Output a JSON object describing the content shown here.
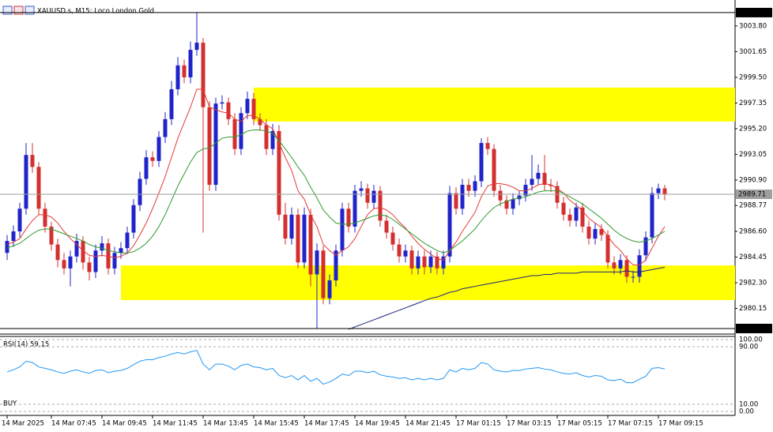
{
  "chart_data": [
    {
      "type": "candlestick",
      "title": "XAUUSD.s, M15: Loco London Gold",
      "categories": [
        "14 Mar 2025",
        null,
        null,
        null,
        null,
        null,
        null,
        "14 Mar 07:45",
        null,
        null,
        null,
        null,
        null,
        null,
        null,
        "14 Mar 09:45",
        null,
        null,
        null,
        null,
        null,
        null,
        null,
        "14 Mar 11:45",
        null,
        null,
        null,
        null,
        null,
        null,
        null,
        "14 Mar 13:45",
        null,
        null,
        null,
        null,
        null,
        null,
        null,
        "14 Mar 15:45",
        null,
        null,
        null,
        null,
        null,
        null,
        null,
        "14 Mar 17:45",
        null,
        null,
        null,
        null,
        null,
        null,
        null,
        "14 Mar 19:45",
        null,
        null,
        null,
        null,
        null,
        null,
        null,
        "14 Mar 21:45",
        null,
        null,
        null,
        null,
        null,
        null,
        null,
        "17 Mar 01:15",
        null,
        null,
        null,
        null,
        null,
        null,
        null,
        "17 Mar 03:15",
        null,
        null,
        null,
        null,
        null,
        null,
        null,
        "17 Mar 05:15",
        null,
        null,
        null,
        null,
        null,
        null,
        null,
        "17 Mar 07:15",
        null,
        null,
        null,
        null,
        null,
        null,
        null,
        "17 Mar 09:15",
        null
      ],
      "open": [
        2984.8,
        2985.8,
        2986.6,
        2988.5,
        2993.0,
        2992.0,
        2988.5,
        2987.0,
        2985.5,
        2984.2,
        2983.5,
        2984.5,
        2985.8,
        2984.0,
        2983.2,
        2985.0,
        2985.6,
        2983.5,
        2984.8,
        2985.2,
        2986.5,
        2988.8,
        2991.0,
        2992.8,
        2992.5,
        2994.5,
        2996.0,
        2998.5,
        3000.5,
        2999.5,
        3001.8,
        3002.4,
        2997.0,
        2990.5,
        2997.3,
        2997.4,
        2996.0,
        2993.5,
        2996.5,
        2997.7,
        2996.0,
        2995.5,
        2993.5,
        2995.0,
        2988.0,
        2986.0,
        2988.0,
        2984.0,
        2988.0,
        2983.0,
        2985.0,
        2981.0,
        2982.5,
        2985.0,
        2988.5,
        2987.0,
        2990.0,
        2990.2,
        2989.0,
        2990.0,
        2987.5,
        2986.5,
        2985.5,
        2984.5,
        2985.0,
        2983.5,
        2984.5,
        2983.6,
        2984.5,
        2983.5,
        2984.5,
        2989.8,
        2988.5,
        2990.5,
        2990.0,
        2990.8,
        2994.0,
        2993.5,
        2990.0,
        2989.2,
        2988.5,
        2989.3,
        2989.6,
        2990.5,
        2991.0,
        2991.5,
        2990.5,
        2990.4,
        2989.0,
        2988.0,
        2987.5,
        2988.6,
        2987.0,
        2986.0,
        2986.8,
        2986.3,
        2984.0,
        2983.5,
        2984.2,
        2982.8,
        2982.8,
        2984.6,
        2986.1,
        2989.8,
        2990.2
      ],
      "high": [
        2986.3,
        2987.1,
        2989.0,
        2994.0,
        2994.0,
        2992.4,
        2989.0,
        2987.4,
        2986.0,
        2984.8,
        2985.0,
        2986.4,
        2986.2,
        2984.5,
        2985.5,
        2986.2,
        2986.0,
        2985.3,
        2985.7,
        2987.0,
        2989.3,
        2991.6,
        2993.4,
        2993.3,
        2995.0,
        2996.6,
        2999.2,
        3001.2,
        3001.0,
        3002.5,
        3004.92,
        3002.8,
        2997.5,
        2997.8,
        2998.0,
        2997.8,
        2996.5,
        2997.0,
        2998.3,
        2998.2,
        2996.5,
        2996.0,
        2995.6,
        2995.5,
        2989.0,
        2988.6,
        2988.5,
        2988.6,
        2988.5,
        2985.6,
        2985.4,
        2983.0,
        2985.5,
        2989.0,
        2989.0,
        2990.5,
        2990.8,
        2990.6,
        2990.5,
        2990.4,
        2988.0,
        2987.0,
        2986.0,
        2985.5,
        2985.4,
        2985.0,
        2985.0,
        2985.0,
        2984.9,
        2985.0,
        2990.4,
        2990.3,
        2991.0,
        2991.0,
        2991.3,
        2994.4,
        2994.5,
        2993.9,
        2990.5,
        2989.6,
        2989.8,
        2990.0,
        2991.0,
        2993.0,
        2992.2,
        2993.0,
        2991.0,
        2990.8,
        2989.5,
        2988.5,
        2989.0,
        2989.0,
        2987.5,
        2987.3,
        2987.2,
        2986.7,
        2984.5,
        2984.7,
        2984.6,
        2983.3,
        2985.1,
        2986.6,
        2990.3,
        2990.6,
        2990.5
      ],
      "low": [
        2984.2,
        2985.3,
        2986.1,
        2988.0,
        2991.5,
        2988.0,
        2986.5,
        2985.0,
        2983.6,
        2983.0,
        2982.0,
        2984.0,
        2983.4,
        2982.5,
        2982.7,
        2984.5,
        2983.0,
        2983.0,
        2984.3,
        2984.7,
        2986.0,
        2988.3,
        2990.5,
        2992.0,
        2992.0,
        2994.0,
        2995.5,
        2998.0,
        2999.0,
        2999.0,
        3001.3,
        2986.5,
        2990.0,
        2990.0,
        2996.8,
        2995.5,
        2993.0,
        2993.0,
        2996.0,
        2995.5,
        2995.0,
        2993.0,
        2993.0,
        2987.5,
        2985.5,
        2985.5,
        2983.5,
        2983.5,
        2982.0,
        2978.47,
        2980.5,
        2980.5,
        2982.0,
        2984.5,
        2986.5,
        2986.5,
        2989.5,
        2988.5,
        2988.5,
        2987.0,
        2986.0,
        2985.0,
        2984.0,
        2984.0,
        2983.0,
        2983.0,
        2983.0,
        2983.1,
        2983.0,
        2983.0,
        2984.0,
        2988.0,
        2988.0,
        2989.5,
        2989.5,
        2990.3,
        2993.0,
        2989.5,
        2988.7,
        2988.0,
        2988.0,
        2988.8,
        2989.1,
        2990.0,
        2990.5,
        2990.0,
        2989.9,
        2988.5,
        2987.5,
        2987.0,
        2987.0,
        2986.5,
        2985.5,
        2985.5,
        2985.8,
        2983.5,
        2983.0,
        2983.0,
        2982.3,
        2982.3,
        2982.3,
        2984.1,
        2985.6,
        2989.3,
        2989.2
      ],
      "close": [
        2985.8,
        2986.6,
        2988.5,
        2993.0,
        2992.0,
        2988.5,
        2987.0,
        2985.5,
        2984.2,
        2983.5,
        2984.5,
        2985.8,
        2984.0,
        2983.2,
        2985.0,
        2985.6,
        2983.5,
        2984.8,
        2985.2,
        2986.5,
        2988.8,
        2991.0,
        2992.8,
        2992.5,
        2994.5,
        2996.0,
        2998.5,
        3000.5,
        2999.5,
        3001.8,
        3002.4,
        2997.0,
        2990.5,
        2997.3,
        2997.4,
        2996.0,
        2993.5,
        2996.5,
        2997.7,
        2996.0,
        2995.5,
        2993.5,
        2995.0,
        2988.0,
        2986.0,
        2988.0,
        2984.0,
        2988.0,
        2983.0,
        2985.0,
        2981.0,
        2982.5,
        2985.0,
        2988.5,
        2987.0,
        2990.0,
        2990.2,
        2989.0,
        2990.0,
        2987.5,
        2986.5,
        2985.5,
        2984.5,
        2985.0,
        2983.5,
        2984.5,
        2983.6,
        2984.5,
        2983.5,
        2984.5,
        2989.8,
        2988.5,
        2990.5,
        2990.0,
        2990.8,
        2994.0,
        2993.5,
        2990.0,
        2989.2,
        2988.5,
        2989.3,
        2989.6,
        2990.5,
        2991.0,
        2991.5,
        2990.5,
        2990.4,
        2989.0,
        2988.0,
        2987.5,
        2988.6,
        2987.0,
        2986.0,
        2986.8,
        2986.3,
        2984.0,
        2983.5,
        2984.2,
        2982.8,
        2982.8,
        2984.6,
        2986.1,
        2989.8,
        2990.2,
        2989.71
      ],
      "up_color": "#1f23c9",
      "down_color": "#d32f2f",
      "lines": [
        {
          "color": "#e53935",
          "values": [
            2985.5,
            2985.7,
            2986.0,
            2986.8,
            2987.5,
            2988.0,
            2988.0,
            2987.8,
            2987.3,
            2986.6,
            2986.0,
            2985.5,
            2985.0,
            2984.6,
            2984.5,
            2984.6,
            2984.5,
            2984.4,
            2984.5,
            2984.8,
            2985.4,
            2986.3,
            2987.3,
            2988.5,
            2989.8,
            2991.2,
            2992.8,
            2994.4,
            2995.7,
            2997.0,
            2998.5,
            2998.5,
            2997.0,
            2996.8,
            2996.6,
            2996.5,
            2996.0,
            2995.8,
            2996.3,
            2996.3,
            2996.0,
            2995.5,
            2995.2,
            2994.0,
            2992.8,
            2991.7,
            2990.0,
            2989.3,
            2988.0,
            2987.0,
            2985.5,
            2985.0,
            2984.6,
            2985.0,
            2985.3,
            2986.0,
            2987.0,
            2988.0,
            2988.5,
            2988.6,
            2988.4,
            2988.0,
            2987.4,
            2986.9,
            2986.2,
            2985.6,
            2985.1,
            2984.7,
            2984.3,
            2984.2,
            2985.0,
            2985.7,
            2986.6,
            2987.4,
            2988.2,
            2989.5,
            2990.4,
            2990.6,
            2990.6,
            2990.5,
            2990.3,
            2990.0,
            2990.0,
            2990.2,
            2990.5,
            2990.6,
            2990.5,
            2990.2,
            2989.8,
            2989.2,
            2988.8,
            2988.3,
            2987.7,
            2987.3,
            2986.9,
            2986.2,
            2985.5,
            2985.0,
            2984.3,
            2983.8,
            2983.8,
            2984.2,
            2985.2,
            2986.2,
            2987.0
          ]
        },
        {
          "color": "#2e9a2e",
          "values": [
            2985.2,
            2985.4,
            2985.6,
            2986.0,
            2986.4,
            2986.7,
            2986.8,
            2986.8,
            2986.6,
            2986.4,
            2986.2,
            2986.0,
            2985.8,
            2985.5,
            2985.3,
            2985.2,
            2985.0,
            2984.9,
            2984.8,
            2984.8,
            2984.9,
            2985.2,
            2985.6,
            2986.2,
            2987.0,
            2988.0,
            2989.2,
            2990.4,
            2991.4,
            2992.4,
            2993.2,
            2993.5,
            2993.6,
            2994.0,
            2994.4,
            2994.5,
            2994.5,
            2994.7,
            2995.0,
            2995.1,
            2995.1,
            2995.0,
            2994.8,
            2994.2,
            2993.5,
            2992.8,
            2992.0,
            2991.3,
            2990.3,
            2989.4,
            2988.4,
            2987.8,
            2987.3,
            2987.2,
            2987.2,
            2987.3,
            2987.5,
            2987.7,
            2987.9,
            2988.0,
            2987.9,
            2987.6,
            2987.2,
            2986.8,
            2986.4,
            2986.0,
            2985.6,
            2985.3,
            2985.0,
            2984.8,
            2985.0,
            2985.4,
            2985.8,
            2986.3,
            2986.8,
            2987.5,
            2988.1,
            2988.6,
            2988.9,
            2989.1,
            2989.3,
            2989.4,
            2989.5,
            2989.7,
            2989.9,
            2990.0,
            2990.0,
            2990.0,
            2989.8,
            2989.5,
            2989.2,
            2988.9,
            2988.5,
            2988.1,
            2987.7,
            2987.2,
            2986.7,
            2986.3,
            2986.0,
            2985.8,
            2985.7,
            2985.8,
            2986.0,
            2986.3,
            2986.6
          ]
        },
        {
          "color": "#1a237e",
          "values": [
            null,
            null,
            null,
            null,
            null,
            null,
            null,
            null,
            null,
            null,
            null,
            null,
            null,
            null,
            null,
            null,
            null,
            null,
            null,
            null,
            null,
            null,
            null,
            null,
            null,
            null,
            null,
            null,
            null,
            null,
            null,
            null,
            null,
            null,
            null,
            null,
            null,
            null,
            null,
            null,
            null,
            null,
            null,
            null,
            null,
            null,
            null,
            null,
            null,
            null,
            null,
            null,
            null,
            null,
            2978.4,
            2978.6,
            2978.8,
            2979.0,
            2979.2,
            2979.4,
            2979.6,
            2979.8,
            2980.0,
            2980.2,
            2980.4,
            2980.6,
            2980.8,
            2981.0,
            2981.1,
            2981.3,
            2981.5,
            2981.6,
            2981.8,
            2981.9,
            2982.0,
            2982.1,
            2982.2,
            2982.3,
            2982.4,
            2982.5,
            2982.6,
            2982.7,
            2982.8,
            2982.9,
            2982.9,
            2983.0,
            2983.0,
            2983.1,
            2983.1,
            2983.1,
            2983.1,
            2983.2,
            2983.2,
            2983.2,
            2983.2,
            2983.2,
            2983.2,
            2983.2,
            2983.3,
            2983.2,
            2983.2,
            2983.3,
            2983.4,
            2983.5,
            2983.6
          ]
        }
      ],
      "zones": [
        {
          "ylim": [
            2995.8,
            2998.64
          ],
          "start": 39,
          "color": "#ffff00"
        },
        {
          "ylim": [
            2980.85,
            2983.75
          ],
          "start": 18,
          "color": "#ffff00"
        }
      ],
      "ylim": [
        2978.07,
        3005.18
      ],
      "yticks": [
        {
          "value": 3003.8,
          "label": "3003.80"
        },
        3001.65,
        {
          "value": 2999.5,
          "label": "2999.50"
        },
        2997.35,
        {
          "value": 2995.2,
          "label": "2995.20"
        },
        2993.05,
        {
          "value": 2990.9,
          "label": "2990.90"
        },
        2988.77,
        {
          "value": 2986.6,
          "label": "2986.60"
        },
        2984.45,
        {
          "value": 2982.3,
          "label": "2982.30"
        },
        2980.15
      ],
      "high_line": 3004.92,
      "low_line": 2978.47,
      "last": 2989.71
    },
    {
      "type": "line",
      "title": "RSI(14) 59.15",
      "annotation": "BUY",
      "color": "#2196f3",
      "values": [
        55,
        58,
        62,
        70,
        68,
        62,
        60,
        58,
        55,
        53,
        56,
        58,
        55,
        53,
        57,
        58,
        54,
        56,
        57,
        60,
        65,
        70,
        72,
        72,
        75,
        77,
        80,
        82,
        80,
        83,
        85,
        66,
        58,
        66,
        66,
        63,
        58,
        64,
        66,
        62,
        61,
        58,
        60,
        50,
        47,
        50,
        44,
        50,
        42,
        46,
        38,
        41,
        46,
        52,
        50,
        56,
        56,
        54,
        56,
        51,
        49,
        48,
        46,
        47,
        44,
        46,
        44,
        46,
        44,
        46,
        58,
        55,
        60,
        58,
        60,
        68,
        66,
        58,
        56,
        55,
        57,
        57,
        59,
        60,
        61,
        59,
        58,
        55,
        53,
        52,
        54,
        50,
        48,
        50,
        49,
        44,
        43,
        45,
        40,
        40,
        45,
        49,
        60,
        61,
        59.15
      ],
      "ylim": [
        0,
        100
      ],
      "yticks": [
        {
          "value": 100,
          "label": "100.00"
        },
        {
          "value": 90,
          "label": "90.00"
        },
        {
          "value": 10,
          "label": "10.00"
        },
        {
          "value": 0,
          "label": "0.00"
        }
      ]
    }
  ]
}
